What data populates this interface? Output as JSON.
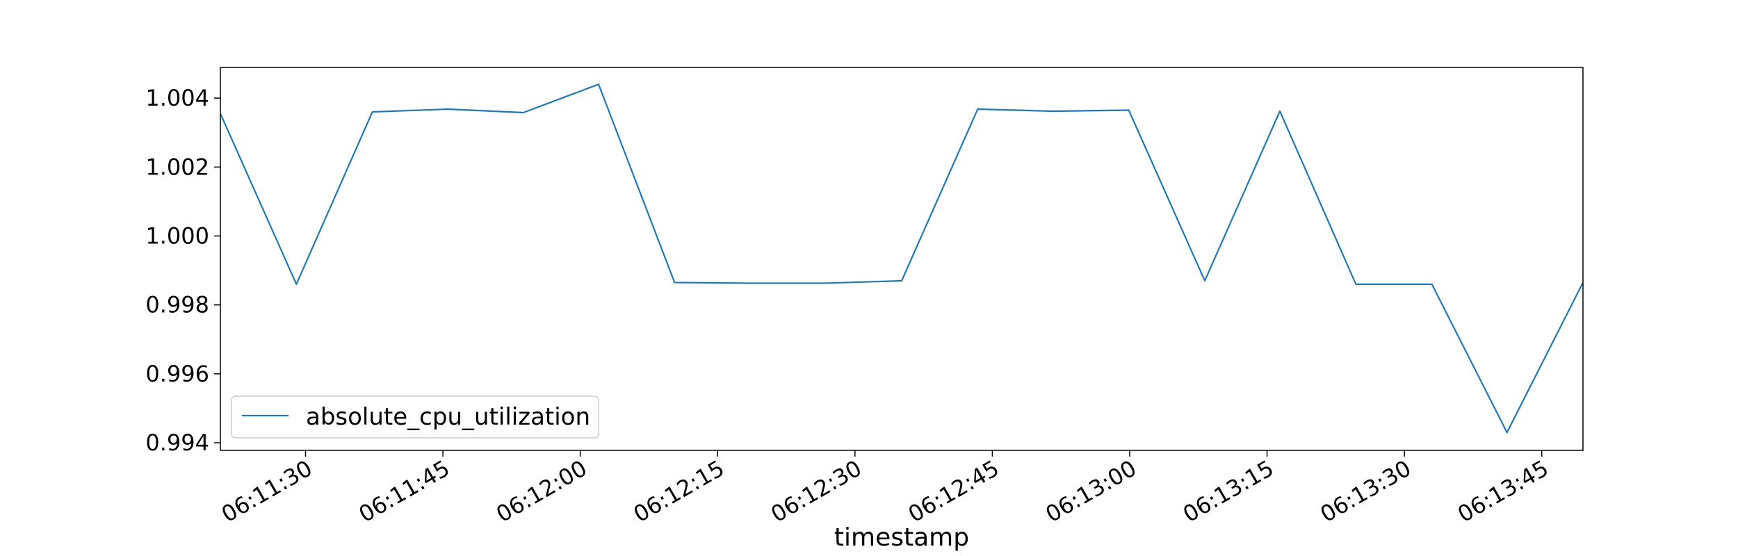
{
  "chart_data": {
    "type": "line",
    "title": "",
    "xlabel": "timestamp",
    "ylabel": "",
    "x_tick_labels": [
      "06:11:30",
      "06:11:45",
      "06:12:00",
      "06:12:15",
      "06:12:30",
      "06:12:45",
      "06:13:00",
      "06:13:15",
      "06:13:30",
      "06:13:45"
    ],
    "x_tick_times": [
      "06:11:30",
      "06:11:45",
      "06:12:00",
      "06:12:15",
      "06:12:30",
      "06:12:45",
      "06:13:00",
      "06:13:15",
      "06:13:30",
      "06:13:45"
    ],
    "y_tick_values": [
      0.994,
      0.996,
      0.998,
      1.0,
      1.002,
      1.004
    ],
    "y_tick_labels": [
      "0.994",
      "0.996",
      "0.998",
      "1.000",
      "1.002",
      "1.004"
    ],
    "xlim": [
      "06:11:20.7",
      "06:13:49.5"
    ],
    "ylim": [
      0.99378,
      1.00489
    ],
    "grid": false,
    "legend_position": "lower-left",
    "color": "#1f77b4",
    "series": [
      {
        "name": "absolute_cpu_utilization",
        "x": [
          "06:11:20.7",
          "06:11:29.0",
          "06:11:37.3",
          "06:11:45.5",
          "06:11:53.8",
          "06:12:02.0",
          "06:12:10.3",
          "06:12:18.6",
          "06:12:26.8",
          "06:12:35.1",
          "06:12:43.4",
          "06:12:51.6",
          "06:12:59.9",
          "06:13:08.2",
          "06:13:16.4",
          "06:13:24.7",
          "06:13:33.0",
          "06:13:41.2",
          "06:13:49.5"
        ],
        "values": [
          1.00355,
          0.9986,
          1.0036,
          1.00368,
          1.00358,
          1.0044,
          0.99865,
          0.99863,
          0.99863,
          0.9987,
          1.00368,
          1.00362,
          1.00365,
          0.9987,
          1.00362,
          0.9986,
          0.9986,
          0.9943,
          0.99865
        ]
      }
    ]
  }
}
